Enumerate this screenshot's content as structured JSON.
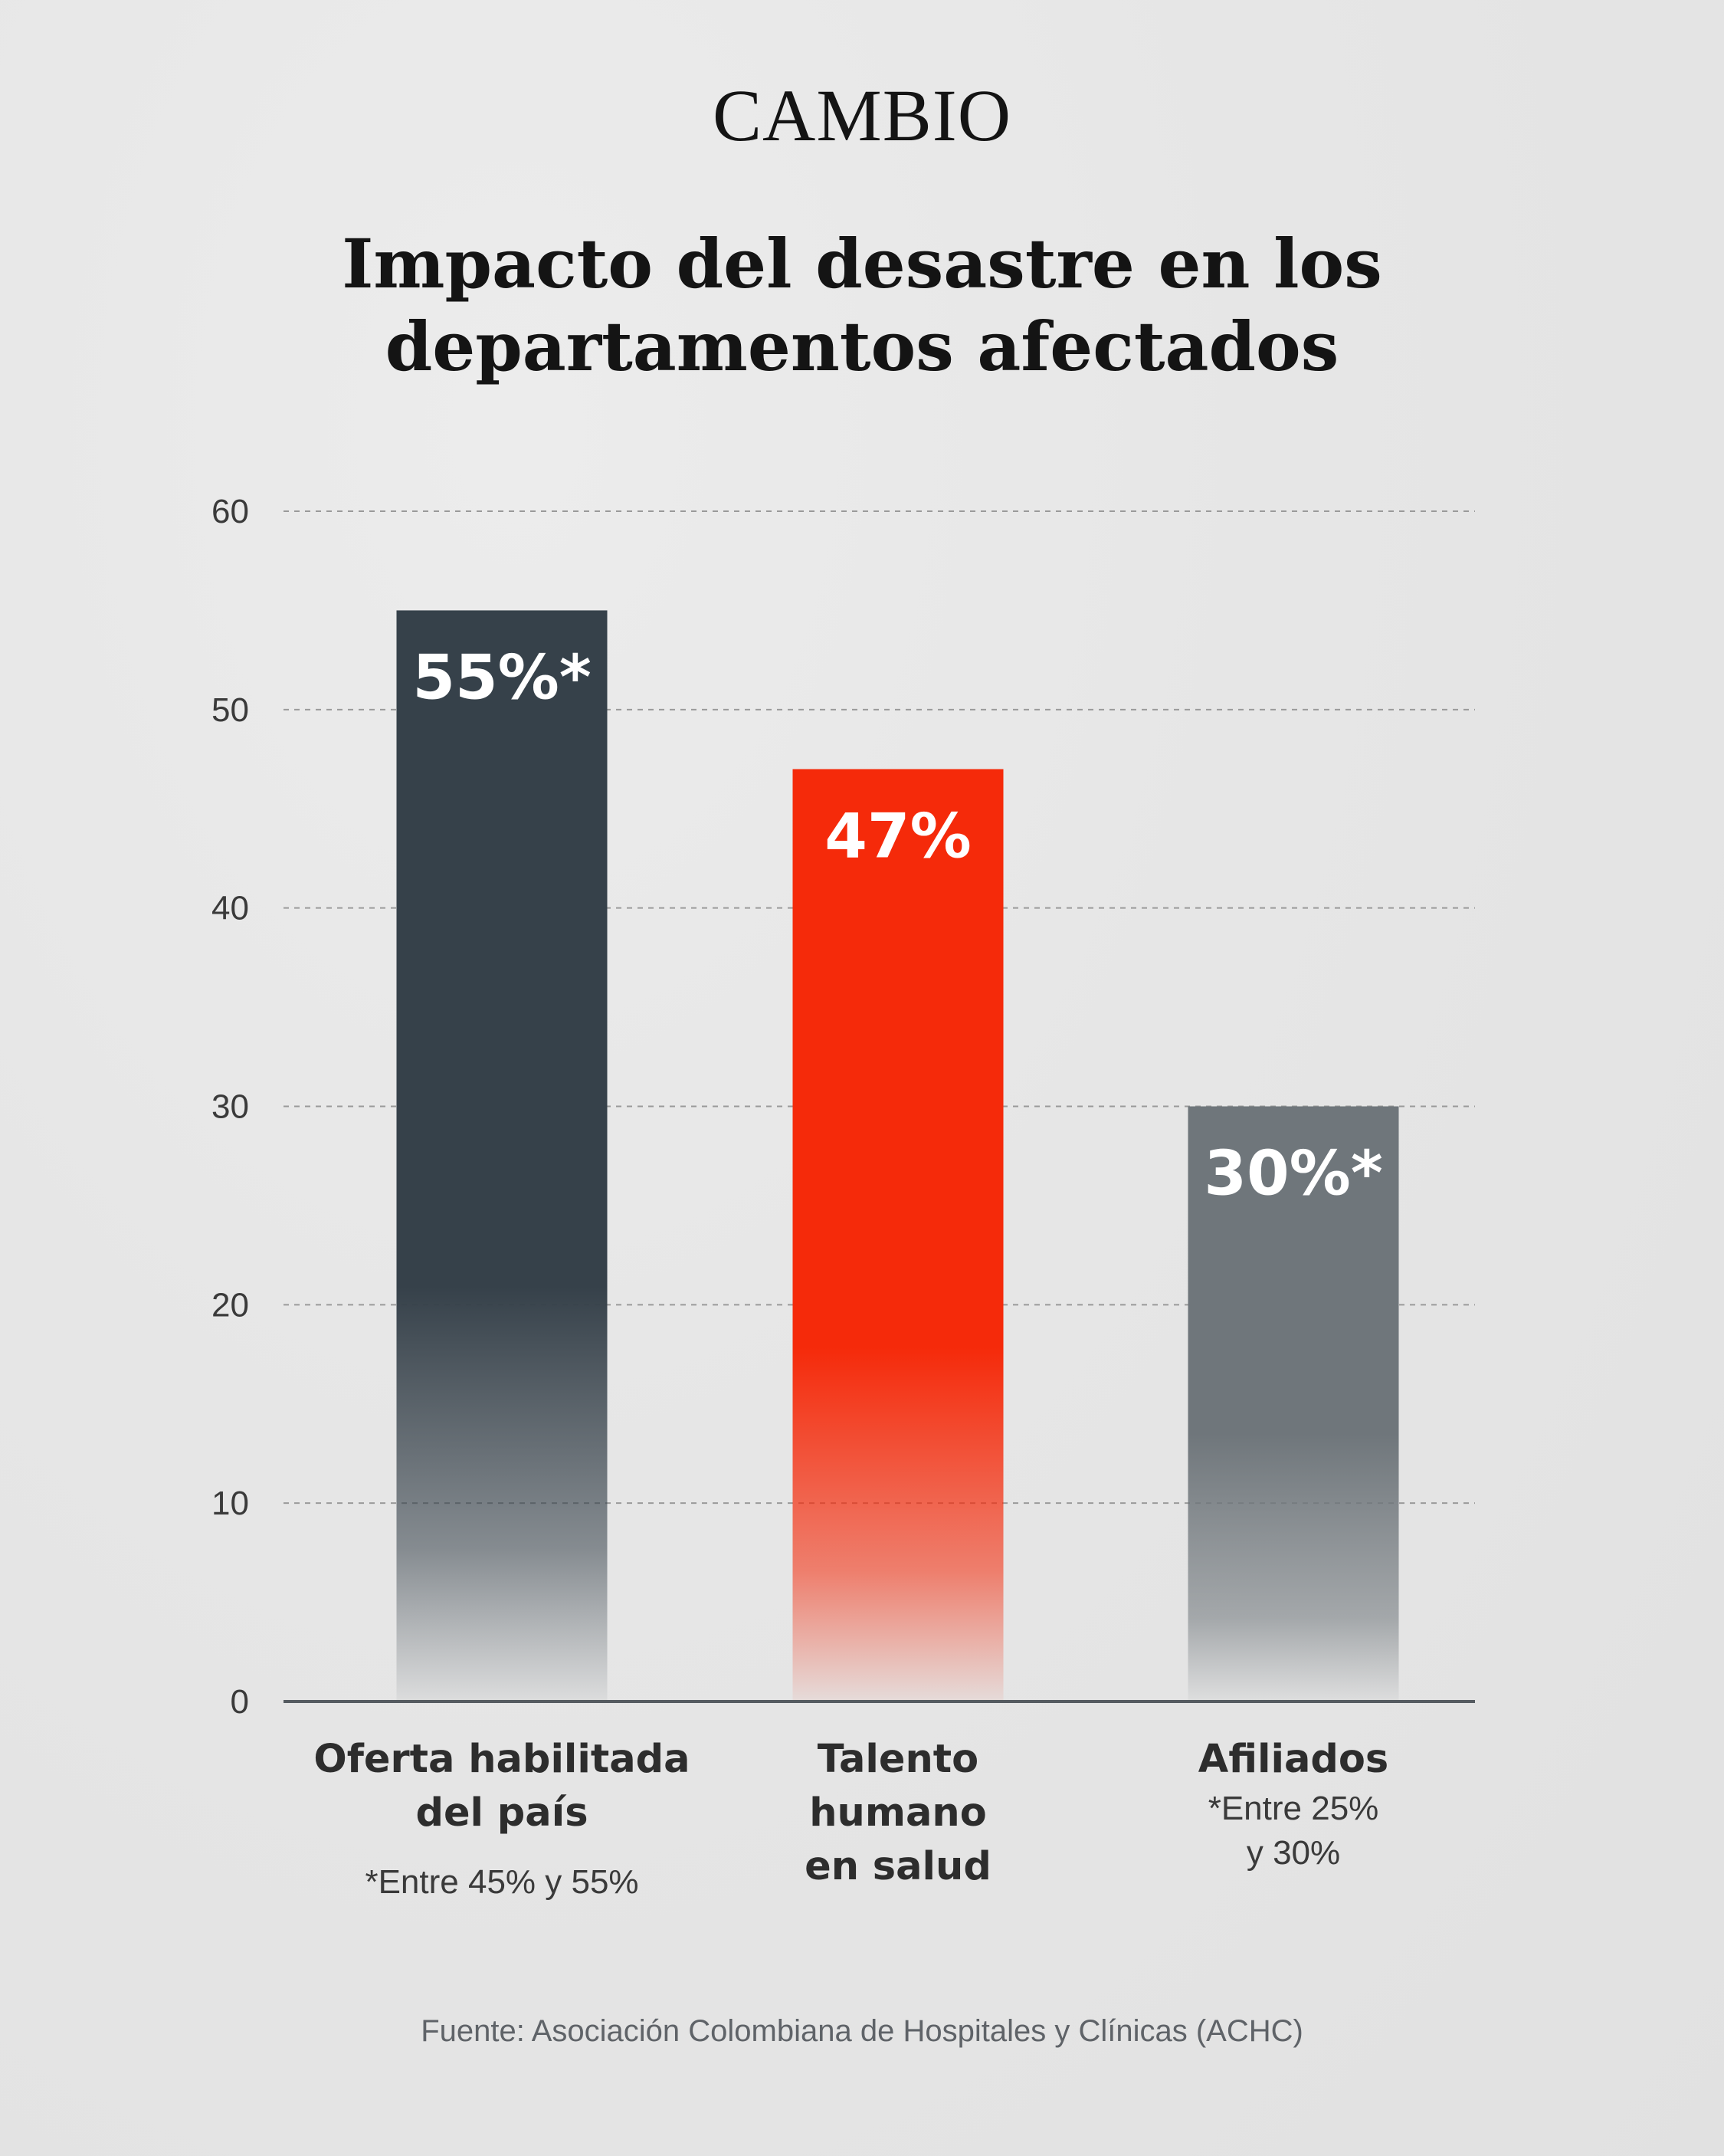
{
  "brand": "CAMBIO",
  "title_lines": [
    "Impacto del desastre en los",
    "departamentos afectados"
  ],
  "source": "Fuente: Asociación Colombiana de Hospitales y Clínicas (ACHC)",
  "colors": {
    "bar_dark": "#36414a",
    "bar_red": "#f52a0a",
    "bar_gray": "#6f767b",
    "text": "#2d2d2d",
    "axis": "#555b60",
    "grid": "#9a9a9a"
  },
  "chart_data": {
    "type": "bar",
    "categories": [
      [
        "Oferta habilitada",
        "del país"
      ],
      [
        "Talento",
        "humano",
        "en salud"
      ],
      [
        "Afiliados"
      ]
    ],
    "values": [
      55,
      47,
      30
    ],
    "value_labels": [
      "55%*",
      "47%",
      "30%*"
    ],
    "notes": [
      [
        "*Entre 45% y 55%"
      ],
      [],
      [
        "*Entre 25%",
        "y 30%"
      ]
    ],
    "bar_colors": [
      "#36414a",
      "#f52a0a",
      "#6f767b"
    ],
    "ylim": [
      0,
      60
    ],
    "yticks": [
      0,
      10,
      20,
      30,
      40,
      50,
      60
    ],
    "grid": true,
    "grid_style": "dashed",
    "xlabel": "",
    "ylabel": ""
  }
}
